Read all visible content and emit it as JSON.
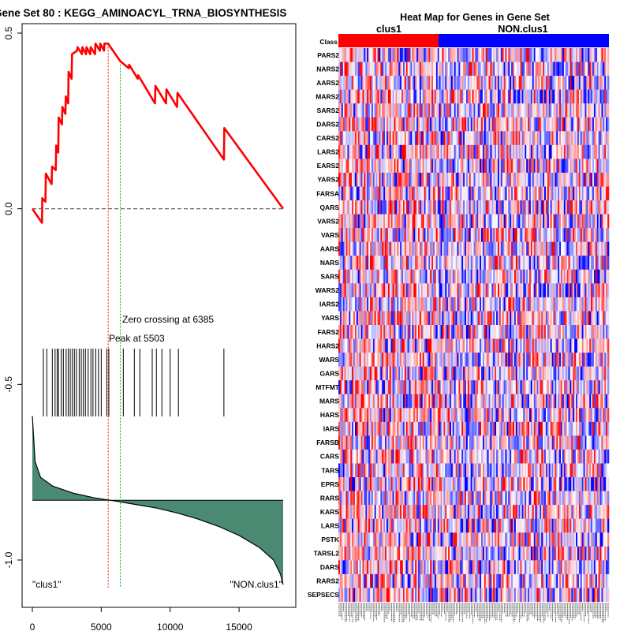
{
  "chart_data": [
    {
      "type": "line",
      "title": "Gene Set  80 : KEGG_AMINOACYL_TRNA_BIOSYNTHESIS",
      "xlabel": "",
      "ylabel": "",
      "xlim": [
        0,
        18200
      ],
      "ylim": [
        -1.13,
        0.53
      ],
      "x_ticks": [
        0,
        5000,
        10000,
        15000
      ],
      "x_tick_labels": [
        "0",
        "5000",
        "10000",
        "15000"
      ],
      "y_ticks": [
        0.5,
        0.0,
        -0.5,
        -1.0
      ],
      "y_tick_labels": [
        "0.5",
        "0.0",
        "-0.5",
        "-1.0"
      ],
      "series": [
        {
          "name": "running enrichment score",
          "color": "#ff0000",
          "points": [
            [
              0,
              0
            ],
            [
              700,
              -0.04
            ],
            [
              720,
              0.03
            ],
            [
              950,
              0.02
            ],
            [
              980,
              0.1
            ],
            [
              1400,
              0.07
            ],
            [
              1430,
              0.12
            ],
            [
              1700,
              0.11
            ],
            [
              1730,
              0.18
            ],
            [
              1880,
              0.16
            ],
            [
              1910,
              0.26
            ],
            [
              2150,
              0.24
            ],
            [
              2180,
              0.29
            ],
            [
              2400,
              0.27
            ],
            [
              2430,
              0.32
            ],
            [
              2600,
              0.3
            ],
            [
              2630,
              0.39
            ],
            [
              2850,
              0.37
            ],
            [
              2880,
              0.44
            ],
            [
              3250,
              0.45
            ],
            [
              3280,
              0.46
            ],
            [
              3600,
              0.44
            ],
            [
              3630,
              0.46
            ],
            [
              3900,
              0.44
            ],
            [
              3930,
              0.46
            ],
            [
              4200,
              0.44
            ],
            [
              4230,
              0.46
            ],
            [
              4550,
              0.44
            ],
            [
              4580,
              0.47
            ],
            [
              4900,
              0.45
            ],
            [
              4930,
              0.47
            ],
            [
              5200,
              0.45
            ],
            [
              5230,
              0.47
            ],
            [
              5503,
              0.47
            ],
            [
              5850,
              0.45
            ],
            [
              6385,
              0.42
            ],
            [
              7000,
              0.4
            ],
            [
              7030,
              0.41
            ],
            [
              7650,
              0.37
            ],
            [
              7680,
              0.38
            ],
            [
              8900,
              0.3
            ],
            [
              8930,
              0.35
            ],
            [
              9700,
              0.3
            ],
            [
              9730,
              0.34
            ],
            [
              10500,
              0.29
            ],
            [
              10530,
              0.33
            ],
            [
              13900,
              0.14
            ],
            [
              13930,
              0.23
            ],
            [
              18200,
              0.0
            ]
          ]
        },
        {
          "name": "ranked list metric",
          "color": "#4a8a73",
          "points": [
            [
              0,
              -0.59
            ],
            [
              200,
              -0.72
            ],
            [
              600,
              -0.765
            ],
            [
              1500,
              -0.79
            ],
            [
              3000,
              -0.81
            ],
            [
              4500,
              -0.823
            ],
            [
              6000,
              -0.832
            ],
            [
              7500,
              -0.842
            ],
            [
              9000,
              -0.852
            ],
            [
              10500,
              -0.866
            ],
            [
              12000,
              -0.883
            ],
            [
              13500,
              -0.904
            ],
            [
              15000,
              -0.93
            ],
            [
              16500,
              -0.965
            ],
            [
              17500,
              -1.0
            ],
            [
              18000,
              -1.04
            ],
            [
              18200,
              -1.07
            ]
          ]
        }
      ],
      "zero_line_y": 0.0,
      "metric_baseline_y": -0.83,
      "hit_positions": [
        800,
        1050,
        1450,
        1650,
        1800,
        1900,
        2100,
        2250,
        2450,
        2600,
        2750,
        2900,
        3050,
        3200,
        3400,
        3550,
        3700,
        3850,
        4050,
        4250,
        4400,
        4600,
        4800,
        5000,
        5400,
        5550,
        6600,
        7400,
        7800,
        8700,
        9000,
        9400,
        10000,
        10600,
        13900
      ],
      "peak": {
        "x": 5503,
        "label": "Peak at 5503",
        "color": "#ff0000"
      },
      "zero_crossing": {
        "x": 6385,
        "label": "Zero crossing at 6385",
        "color": "#00aa00"
      },
      "bottom_left_label": "\"clus1\"",
      "bottom_right_label": "\"NON.clus1\""
    },
    {
      "type": "heatmap",
      "title": "Heat Map for Genes in Gene Set",
      "class_row_label": "Class",
      "classes": [
        {
          "name": "clus1",
          "color": "#ff0000",
          "fraction": 0.37
        },
        {
          "name": "NON.clus1",
          "color": "#0000ff",
          "fraction": 0.63
        }
      ],
      "genes": [
        "PARS2",
        "NARS2",
        "AARS2",
        "MARS2",
        "SARS2",
        "DARS2",
        "CARS2",
        "LARS2",
        "EARS2",
        "YARS2",
        "FARSA",
        "QARS",
        "VARS2",
        "VARS",
        "AARS",
        "NARS",
        "SARS",
        "WARS2",
        "IARS2",
        "YARS",
        "FARS2",
        "HARS2",
        "WARS",
        "GARS",
        "MTFMT",
        "MARS",
        "HARS",
        "IARS",
        "FARSB",
        "CARS",
        "TARS",
        "EPRS",
        "RARS",
        "KARS",
        "LARS",
        "PSTK",
        "TARSL2",
        "DARS",
        "RARS2",
        "SEPSECS"
      ],
      "n_samples": 180,
      "colors": {
        "low": "#0000ff",
        "mid": "#ffffff",
        "high": "#ff0000"
      }
    }
  ]
}
